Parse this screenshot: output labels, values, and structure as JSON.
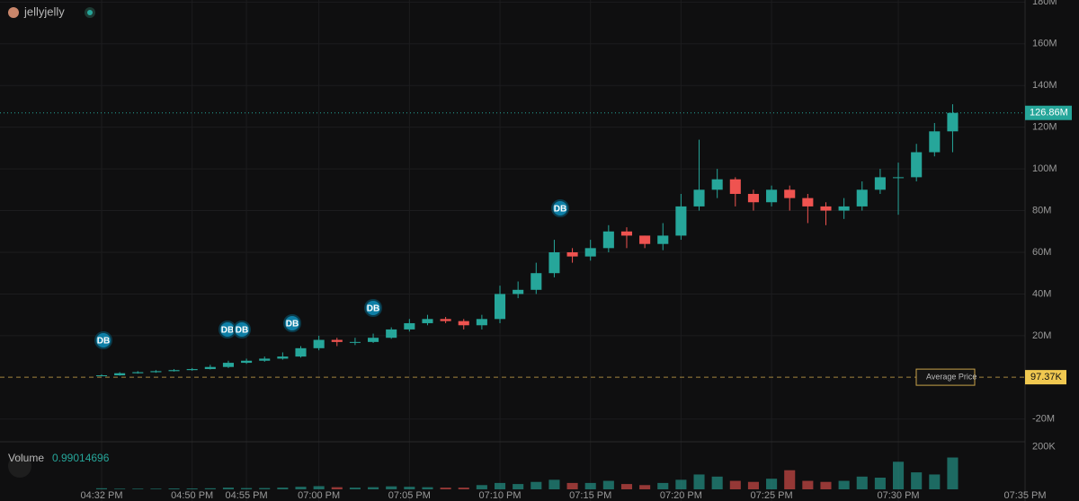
{
  "chart_data": {
    "type": "candlestick",
    "symbol": "jellyjelly",
    "categories": [
      "04:32 PM",
      null,
      null,
      null,
      null,
      "04:50 PM",
      null,
      null,
      "04:55 PM",
      null,
      null,
      null,
      "07:00 PM",
      null,
      null,
      null,
      null,
      "07:05 PM",
      null,
      null,
      null,
      null,
      "07:10 PM",
      null,
      null,
      null,
      null,
      "07:15 PM",
      null,
      null,
      null,
      null,
      "07:20 PM",
      null,
      null,
      null,
      null,
      "07:25 PM",
      null,
      null,
      null,
      null,
      null,
      null,
      "07:30 PM",
      null,
      null,
      null,
      null,
      null,
      null,
      "07:35 PM"
    ],
    "open": [
      0.9,
      1,
      2,
      2.5,
      3,
      3.5,
      4,
      5,
      7,
      8,
      9,
      10,
      14,
      18,
      17,
      17,
      19,
      23,
      26,
      28,
      27,
      25,
      28,
      40,
      42,
      50,
      60,
      58,
      62,
      70,
      68,
      64,
      68,
      82,
      90,
      95,
      88,
      84,
      90,
      86,
      82,
      80,
      82,
      90,
      96,
      96,
      108,
      118,
      null,
      null,
      null,
      null
    ],
    "high": [
      1.5,
      2.5,
      3,
      3.5,
      4,
      4.5,
      6,
      8,
      9,
      10,
      12,
      15,
      20,
      19,
      19,
      21,
      24,
      28,
      30,
      29,
      28,
      30,
      44,
      46,
      55,
      66,
      62,
      66,
      73,
      72,
      68,
      74,
      88,
      114,
      100,
      96,
      90,
      92,
      92,
      88,
      84,
      86,
      94,
      100,
      103,
      112,
      122,
      131,
      null,
      null,
      null,
      null
    ],
    "low": [
      0.5,
      0.8,
      1.8,
      2.2,
      2.8,
      3.2,
      3.8,
      4.5,
      6.5,
      7.5,
      8.5,
      9.5,
      13,
      15,
      15.5,
      16.5,
      18.5,
      22,
      25,
      26,
      23,
      23,
      26,
      38,
      40,
      48,
      55,
      56,
      60,
      62,
      62,
      61,
      66,
      80,
      86,
      82,
      80,
      82,
      80,
      74,
      73,
      76,
      80,
      88,
      78,
      94,
      106,
      108,
      null,
      null,
      null,
      null
    ],
    "close": [
      1,
      2,
      2.5,
      3,
      3.5,
      4,
      5,
      7,
      8,
      9,
      10,
      14,
      18,
      17,
      17,
      19,
      23,
      26,
      28,
      27,
      25,
      28,
      40,
      42,
      50,
      60,
      58,
      62,
      70,
      68,
      64,
      68,
      82,
      90,
      95,
      88,
      84,
      90,
      86,
      82,
      80,
      82,
      90,
      96,
      96,
      108,
      118,
      126.86,
      null,
      null,
      null,
      null
    ],
    "volume": [
      5,
      3,
      3,
      3,
      4,
      4,
      5,
      8,
      6,
      6,
      8,
      12,
      15,
      10,
      8,
      10,
      14,
      12,
      10,
      8,
      8,
      20,
      30,
      25,
      35,
      45,
      30,
      30,
      40,
      25,
      20,
      30,
      45,
      70,
      60,
      40,
      35,
      50,
      90,
      40,
      35,
      40,
      60,
      55,
      130,
      80,
      70,
      150,
      null,
      null,
      null,
      null
    ],
    "up_color": "#26a69a",
    "down_color": "#ef5350",
    "ylim": [
      -30,
      181
    ],
    "yticks": [
      {
        "value": 180,
        "label": "180M"
      },
      {
        "value": 160,
        "label": "160M"
      },
      {
        "value": 140,
        "label": "140M"
      },
      {
        "value": 120,
        "label": "120M"
      },
      {
        "value": 100,
        "label": "100M"
      },
      {
        "value": 80,
        "label": "80M"
      },
      {
        "value": 60,
        "label": "60M"
      },
      {
        "value": 40,
        "label": "40M"
      },
      {
        "value": 20,
        "label": "20M"
      },
      {
        "value": -20,
        "label": "-20M"
      }
    ],
    "volume_title": "Volume",
    "volume_value": 0.99014696,
    "volume_lim": [
      0,
      220
    ],
    "volume_ticks": [
      {
        "value": 200,
        "label": "200K"
      }
    ],
    "last_price": {
      "value": 126.86,
      "label": "126.86M"
    },
    "average_price": {
      "name": "Average Price",
      "value": 0.09737,
      "label": "97.37K"
    },
    "markers": [
      "DB",
      "DB",
      "DB",
      "DB",
      "DB",
      "DB"
    ],
    "grid": true
  }
}
